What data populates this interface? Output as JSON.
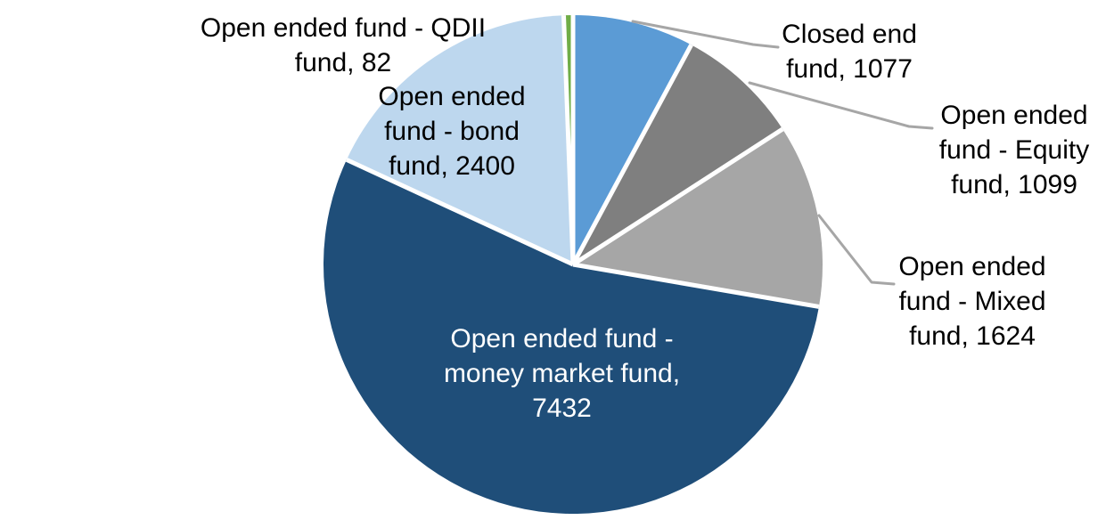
{
  "chart_data": {
    "type": "pie",
    "title": "",
    "total": 13714,
    "start_angle_deg": 0,
    "direction": "clockwise",
    "border_color": "#FFFFFF",
    "leader_line_color": "#A6A6A6",
    "label_text_color": "#000000",
    "inner_label_text_color": "#FFFFFF",
    "slices": [
      {
        "name": "Closed end fund",
        "value": 1077,
        "color": "#5B9BD5",
        "label_display": "Closed end\nfund, 1077",
        "label_placement": "outside-right-leader"
      },
      {
        "name": "Open ended fund - Equity fund",
        "value": 1099,
        "color": "#7F7F7F",
        "label_display": "Open ended\nfund - Equity\nfund, 1099",
        "label_placement": "outside-right-leader"
      },
      {
        "name": "Open ended fund - Mixed fund",
        "value": 1624,
        "color": "#A6A6A6",
        "label_display": "Open ended\nfund - Mixed\nfund, 1624",
        "label_placement": "outside-right-leader"
      },
      {
        "name": "Open ended fund - money market fund",
        "value": 7432,
        "color": "#1F4E79",
        "label_display": "Open ended fund -\nmoney market fund,\n7432",
        "label_placement": "inside"
      },
      {
        "name": "Open ended fund - bond fund",
        "value": 2400,
        "color": "#BDD7EE",
        "label_display": "Open ended\nfund - bond\nfund, 2400",
        "label_placement": "inside"
      },
      {
        "name": "Open ended fund - QDII fund",
        "value": 82,
        "color": "#70AD47",
        "label_display": "Open ended fund - QDII\nfund, 82",
        "label_placement": "outside-left"
      }
    ]
  }
}
